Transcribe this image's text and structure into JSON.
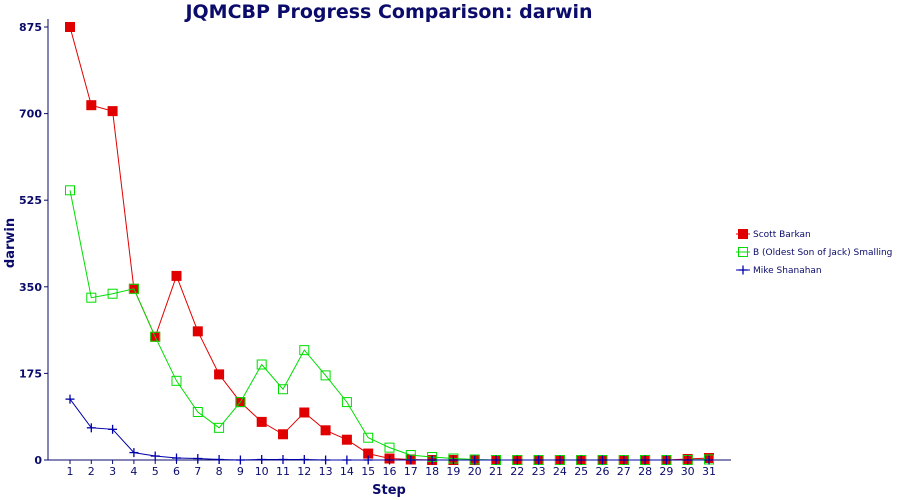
{
  "chart_data": {
    "type": "line",
    "title": "JQMCBP Progress Comparison: darwin",
    "xlabel": "Step",
    "ylabel": "darwin",
    "x": [
      1,
      2,
      3,
      4,
      5,
      6,
      7,
      8,
      9,
      10,
      11,
      12,
      13,
      14,
      15,
      16,
      17,
      18,
      19,
      20,
      21,
      22,
      23,
      24,
      25,
      26,
      27,
      28,
      29,
      30,
      31
    ],
    "yticks": [
      0,
      175,
      350,
      525,
      700,
      875
    ],
    "ylim": [
      0,
      875
    ],
    "xlim": [
      1,
      31
    ],
    "grid": false,
    "legend_position": "right",
    "series": [
      {
        "name": "Scott Barkan",
        "color": "#e00000",
        "marker": "filled-square",
        "values": [
          875,
          717,
          705,
          346,
          249,
          372,
          260,
          173,
          117,
          77,
          52,
          96,
          60,
          41,
          13,
          3,
          1,
          0,
          0,
          0,
          0,
          0,
          0,
          0,
          0,
          0,
          0,
          0,
          0,
          2,
          4
        ]
      },
      {
        "name": "B (Oldest Son of Jack) Smalling",
        "color": "#00dd00",
        "marker": "open-square",
        "values": [
          545,
          328,
          336,
          346,
          249,
          160,
          97,
          65,
          117,
          193,
          143,
          222,
          171,
          117,
          45,
          25,
          10,
          6,
          3,
          1,
          0,
          0,
          0,
          0,
          0,
          0,
          0,
          0,
          0,
          0,
          1
        ]
      },
      {
        "name": "Mike Shanahan",
        "color": "#0000aa",
        "marker": "plus",
        "values": [
          123,
          65,
          62,
          15,
          8,
          4,
          3,
          1,
          0,
          1,
          1,
          1,
          0,
          0,
          0,
          0,
          0,
          0,
          0,
          0,
          0,
          0,
          0,
          0,
          0,
          0,
          0,
          0,
          0,
          0,
          0
        ]
      }
    ]
  }
}
